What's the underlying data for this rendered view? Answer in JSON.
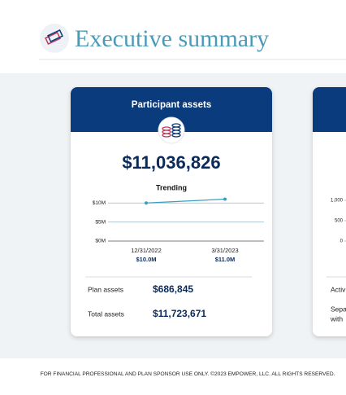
{
  "header": {
    "title": "Executive summary"
  },
  "card": {
    "title": "Participant assets",
    "total": "$11,036,826",
    "trend_chart": {
      "type": "line",
      "title": "Trending",
      "categories": [
        "12/31/2022",
        "3/31/2023"
      ],
      "values": [
        10.0,
        11.0
      ],
      "value_labels": [
        "$10.0M",
        "$11.0M"
      ],
      "color": "#3a9ec2",
      "ylim": [
        0,
        11.2
      ],
      "yticks": [
        {
          "value": 10,
          "label": "$10M"
        },
        {
          "value": 5,
          "label": "$5M"
        },
        {
          "value": 0,
          "label": "$0M"
        }
      ],
      "grid": true
    },
    "rows": [
      {
        "label": "Plan assets",
        "value": "$686,845"
      },
      {
        "label": "Total assets",
        "value": "$11,723,671"
      }
    ]
  },
  "side_card": {
    "chart": {
      "ylim": [
        0,
        1000
      ],
      "yticks": [
        {
          "value": 1000,
          "label": "1,000"
        },
        500,
        0
      ]
    },
    "texts": [
      "Activ",
      "Sepa",
      "with"
    ]
  },
  "footer": {
    "text": "FOR FINANCIAL PROFESSIONAL AND PLAN SPONSOR USE ONLY. ©2023 EMPOWER, LLC. ALL RIGHTS RESERVED."
  }
}
